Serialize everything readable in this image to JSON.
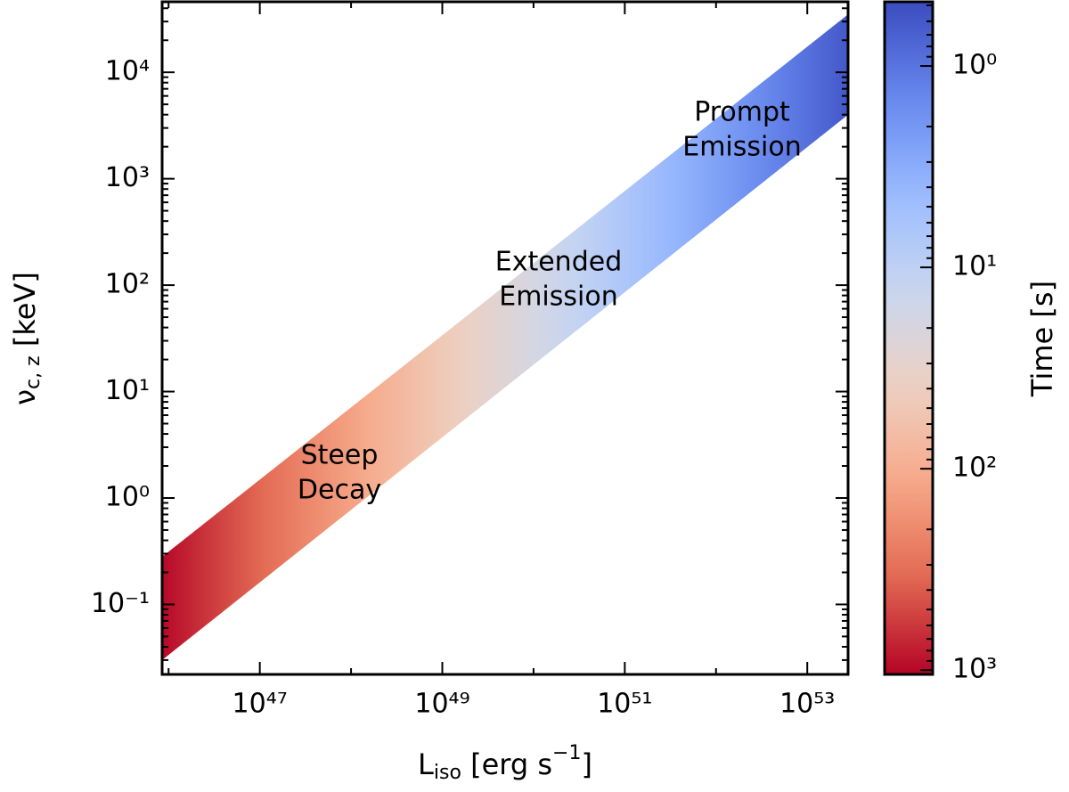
{
  "chart_data": {
    "type": "band",
    "x": [
      8.5e+45,
      2.8e+53
    ],
    "upper": [
      0.28,
      35000
    ],
    "lower": [
      0.03,
      4000
    ],
    "time": [
      1000,
      0.6
    ],
    "xlog": true,
    "ylog": true,
    "xlim": [
      8.5e+45,
      2.8e+53
    ],
    "ylim": [
      0.022,
      46000
    ],
    "xticks": [
      {
        "value": 1e+47,
        "label": "10⁴⁷"
      },
      {
        "value": 1e+49,
        "label": "10⁴⁹"
      },
      {
        "value": 1e+51,
        "label": "10⁵¹"
      },
      {
        "value": 1e+53,
        "label": "10⁵³"
      }
    ],
    "xminorticks": [
      1e+46,
      1e+48,
      1e+50,
      1e+52
    ],
    "yticks": [
      {
        "value": 0.1,
        "label": "10⁻¹"
      },
      {
        "value": 1,
        "label": "10⁰"
      },
      {
        "value": 10,
        "label": "10¹"
      },
      {
        "value": 100,
        "label": "10²"
      },
      {
        "value": 1000,
        "label": "10³"
      },
      {
        "value": 10000,
        "label": "10⁴"
      }
    ],
    "yminorticks": [
      0.03,
      0.04,
      0.05,
      0.06,
      0.07,
      0.08,
      0.09,
      0.2,
      0.3,
      0.4,
      0.5,
      0.6,
      0.7,
      0.8,
      0.9,
      2,
      3,
      4,
      5,
      6,
      7,
      8,
      9,
      20,
      30,
      40,
      50,
      60,
      70,
      80,
      90,
      200,
      300,
      400,
      500,
      600,
      700,
      800,
      900,
      2000,
      3000,
      4000,
      5000,
      6000,
      7000,
      8000,
      9000,
      20000,
      30000,
      40000
    ],
    "xlabel": [
      "L",
      "iso",
      " [erg s",
      "−1",
      "]"
    ],
    "ylabel": [
      "ν",
      "c, z",
      " [keV]"
    ],
    "annotations": [
      [
        "Steep",
        "Decay"
      ],
      [
        "Extended",
        "Emission"
      ],
      [
        "Prompt",
        "Emission"
      ]
    ],
    "colorbar": {
      "label": "Time [s]",
      "log": true,
      "inverted": true,
      "clim": [
        0.48,
        1050
      ],
      "ticks": [
        {
          "value": 1,
          "label": "10⁰"
        },
        {
          "value": 10,
          "label": "10¹"
        },
        {
          "value": 100,
          "label": "10²"
        },
        {
          "value": 1000,
          "label": "10³"
        }
      ],
      "minorticks": [
        0.5,
        0.6,
        0.7,
        0.8,
        0.9,
        2,
        3,
        4,
        5,
        6,
        7,
        8,
        9,
        20,
        30,
        40,
        50,
        60,
        70,
        80,
        90,
        200,
        300,
        400,
        500,
        600,
        700,
        800,
        900
      ],
      "colormap": [
        "#3b4cc0",
        "#6788ee",
        "#9abbff",
        "#c9d7f0",
        "#edd1c2",
        "#f7a889",
        "#e26952",
        "#b40426"
      ]
    }
  }
}
